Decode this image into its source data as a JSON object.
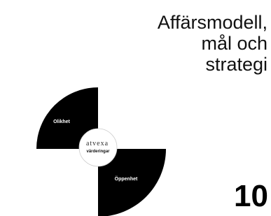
{
  "title": {
    "lines": [
      "Affärsmodell,",
      "mål och",
      "strategi"
    ]
  },
  "graphic": {
    "segments": [
      "Olikhet",
      "Öppenhet"
    ],
    "center": {
      "logo": "atvexa",
      "label": "värderingar"
    }
  },
  "page_number": 10
}
